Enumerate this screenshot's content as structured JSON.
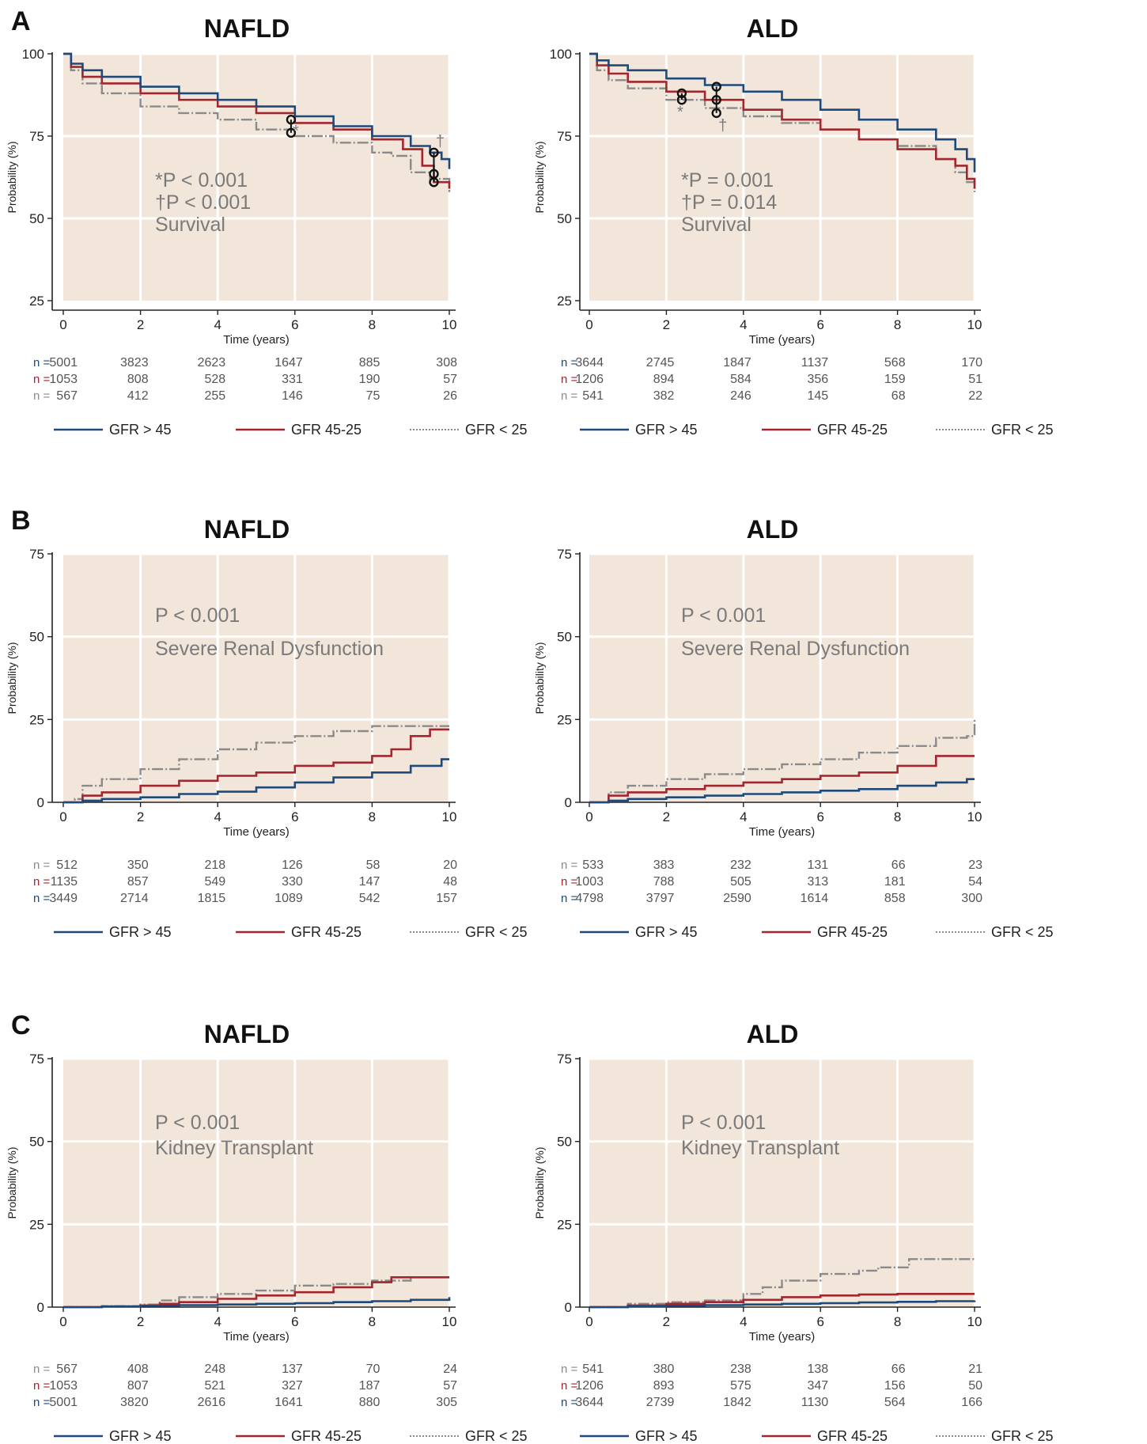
{
  "colors": {
    "background": "#ffffff",
    "plot_bg": "#f2e6da",
    "grid": "#ffffff",
    "axis": "#222222",
    "gfr_gt45": "#1d4a7a",
    "gfr_45_25": "#a3262e",
    "gfr_lt25": "#8a8a8a",
    "annotation": "#7a7a7a"
  },
  "common": {
    "ylabel": "Probability (%)",
    "xlabel": "Time (years)",
    "n_prefix": "n =",
    "legend": [
      {
        "key": "gfr_gt45",
        "label": "GFR > 45"
      },
      {
        "key": "gfr_45_25",
        "label": "GFR 45-25"
      },
      {
        "key": "gfr_lt25",
        "label": "GFR < 25"
      }
    ]
  },
  "chart_data": [
    {
      "panel": "A",
      "title": "NAFLD",
      "type": "line",
      "xlabel": "Time (years)",
      "ylabel": "Probability (%)",
      "xlim": [
        0,
        10
      ],
      "ylim": [
        25,
        100
      ],
      "x_ticks": [
        0,
        2,
        4,
        6,
        8,
        10
      ],
      "y_ticks": [
        25,
        50,
        75,
        100
      ],
      "annotation_lines": [
        "*P < 0.001",
        "†P < 0.001",
        "Survival"
      ],
      "series": [
        {
          "key": "gfr_gt45",
          "name": "GFR > 45",
          "x": [
            0,
            0.2,
            0.5,
            1,
            2,
            3,
            4,
            5,
            6,
            7,
            8,
            9,
            9.5,
            9.8,
            10
          ],
          "y": [
            100,
            97,
            95,
            93,
            90,
            88,
            86,
            84,
            81,
            78,
            75,
            72,
            70,
            68,
            65
          ]
        },
        {
          "key": "gfr_45_25",
          "name": "GFR 45-25",
          "x": [
            0,
            0.2,
            0.5,
            1,
            2,
            3,
            4,
            5,
            6,
            7,
            8,
            8.8,
            9.3,
            9.6,
            10
          ],
          "y": [
            100,
            96,
            93,
            91,
            88,
            86,
            84,
            82,
            79,
            77,
            74,
            71,
            66,
            61,
            59
          ]
        },
        {
          "key": "gfr_lt25",
          "name": "GFR < 25",
          "x": [
            0,
            0.2,
            0.5,
            1,
            2,
            3,
            4,
            5,
            6,
            7,
            8,
            8.5,
            9,
            9.5,
            10
          ],
          "y": [
            100,
            95,
            91,
            88,
            84,
            82,
            80,
            77,
            75,
            73,
            70,
            69,
            64,
            62,
            58
          ]
        }
      ],
      "markers": [
        {
          "x": 5.9,
          "y": [
            80,
            76
          ],
          "symbol": "*"
        },
        {
          "x": 9.6,
          "y": [
            70,
            63.5,
            61
          ],
          "symbol": "†"
        }
      ],
      "risk_table": [
        {
          "key": "gfr_gt45",
          "values": [
            "5001",
            "3823",
            "2623",
            "1647",
            "885",
            "308"
          ]
        },
        {
          "key": "gfr_45_25",
          "values": [
            "1053",
            "808",
            "528",
            "331",
            "190",
            "57"
          ]
        },
        {
          "key": "gfr_lt25",
          "values": [
            "567",
            "412",
            "255",
            "146",
            "75",
            "26"
          ]
        }
      ]
    },
    {
      "panel": "",
      "title": "ALD",
      "type": "line",
      "xlabel": "Time (years)",
      "ylabel": "Probability (%)",
      "xlim": [
        0,
        10
      ],
      "ylim": [
        25,
        100
      ],
      "x_ticks": [
        0,
        2,
        4,
        6,
        8,
        10
      ],
      "y_ticks": [
        25,
        50,
        75,
        100
      ],
      "annotation_lines": [
        "*P = 0.001",
        "†P = 0.014",
        "Survival"
      ],
      "series": [
        {
          "key": "gfr_gt45",
          "name": "GFR > 45",
          "x": [
            0,
            0.2,
            0.5,
            1,
            2,
            3,
            4,
            5,
            6,
            7,
            8,
            9,
            9.5,
            9.8,
            10
          ],
          "y": [
            100,
            98,
            96.5,
            95,
            92.5,
            90.5,
            88.5,
            86,
            83,
            80,
            77,
            74,
            71,
            68,
            64
          ]
        },
        {
          "key": "gfr_45_25",
          "name": "GFR 45-25",
          "x": [
            0,
            0.2,
            0.5,
            1,
            2,
            3,
            4,
            5,
            6,
            7,
            8,
            9,
            9.5,
            9.8,
            10
          ],
          "y": [
            100,
            96.5,
            94,
            91.5,
            88.5,
            86,
            83,
            80,
            77,
            74,
            71,
            68,
            66,
            62,
            59
          ]
        },
        {
          "key": "gfr_lt25",
          "name": "GFR < 25",
          "x": [
            0,
            0.2,
            0.5,
            1,
            2,
            3,
            4,
            5,
            6,
            7,
            8,
            9,
            9.5,
            9.8,
            10
          ],
          "y": [
            100,
            95,
            92,
            89.5,
            86,
            83.5,
            81,
            79,
            77,
            74,
            72,
            68,
            64,
            61,
            58
          ]
        }
      ],
      "markers": [
        {
          "x": 2.4,
          "y": [
            88,
            86
          ],
          "symbol": "*"
        },
        {
          "x": 3.3,
          "y": [
            90,
            86,
            82
          ],
          "symbol": "†"
        }
      ],
      "risk_table": [
        {
          "key": "gfr_gt45",
          "values": [
            "3644",
            "2745",
            "1847",
            "1137",
            "568",
            "170"
          ]
        },
        {
          "key": "gfr_45_25",
          "values": [
            "1206",
            "894",
            "584",
            "356",
            "159",
            "51"
          ]
        },
        {
          "key": "gfr_lt25",
          "values": [
            "541",
            "382",
            "246",
            "145",
            "68",
            "22"
          ]
        }
      ]
    },
    {
      "panel": "B",
      "title": "NAFLD",
      "type": "line",
      "xlabel": "Time (years)",
      "ylabel": "Probability (%)",
      "xlim": [
        0,
        10
      ],
      "ylim": [
        0,
        75
      ],
      "x_ticks": [
        0,
        2,
        4,
        6,
        8,
        10
      ],
      "y_ticks": [
        0,
        25,
        50,
        75
      ],
      "annotation_lines": [
        "P < 0.001",
        "Severe Renal Dysfunction"
      ],
      "series": [
        {
          "key": "gfr_gt45",
          "name": "GFR > 45",
          "x": [
            0,
            0.5,
            1,
            2,
            3,
            4,
            5,
            6,
            7,
            8,
            9,
            9.8,
            10
          ],
          "y": [
            0,
            0.5,
            1,
            1.5,
            2.5,
            3.2,
            4.5,
            6,
            7.5,
            9,
            11,
            13,
            13
          ]
        },
        {
          "key": "gfr_45_25",
          "name": "GFR 45-25",
          "x": [
            0,
            0.5,
            1,
            2,
            3,
            4,
            5,
            6,
            7,
            8,
            8.5,
            9,
            9.5,
            10
          ],
          "y": [
            0,
            2,
            3,
            5,
            6.5,
            8,
            9,
            11,
            12,
            14,
            16,
            20,
            22,
            22
          ]
        },
        {
          "key": "gfr_lt25",
          "name": "GFR < 25",
          "x": [
            0,
            0.3,
            0.5,
            1,
            2,
            3,
            4,
            5,
            6,
            7,
            8,
            9,
            10
          ],
          "y": [
            0,
            1,
            5,
            7,
            10,
            13,
            16,
            18,
            20,
            21.5,
            23,
            23,
            23
          ]
        }
      ],
      "markers": [],
      "risk_table": [
        {
          "key": "gfr_lt25",
          "values": [
            "512",
            "350",
            "218",
            "126",
            "58",
            "20"
          ]
        },
        {
          "key": "gfr_45_25",
          "values": [
            "1135",
            "857",
            "549",
            "330",
            "147",
            "48"
          ]
        },
        {
          "key": "gfr_gt45",
          "values": [
            "3449",
            "2714",
            "1815",
            "1089",
            "542",
            "157"
          ]
        }
      ]
    },
    {
      "panel": "",
      "title": "ALD",
      "type": "line",
      "xlabel": "Time (years)",
      "ylabel": "Probability (%)",
      "xlim": [
        0,
        10
      ],
      "ylim": [
        0,
        75
      ],
      "x_ticks": [
        0,
        2,
        4,
        6,
        8,
        10
      ],
      "y_ticks": [
        0,
        25,
        50,
        75
      ],
      "annotation_lines": [
        "P < 0.001",
        "Severe Renal Dysfunction"
      ],
      "series": [
        {
          "key": "gfr_gt45",
          "name": "GFR > 45",
          "x": [
            0,
            0.4,
            0.5,
            1,
            2,
            3,
            4,
            5,
            6,
            7,
            8,
            9,
            9.8,
            10
          ],
          "y": [
            0,
            0,
            0.5,
            1,
            1.5,
            2,
            2.5,
            3,
            3.5,
            4,
            5,
            6,
            7,
            7
          ]
        },
        {
          "key": "gfr_45_25",
          "name": "GFR 45-25",
          "x": [
            0,
            0.4,
            0.5,
            1,
            2,
            3,
            4,
            5,
            6,
            7,
            8,
            9,
            10
          ],
          "y": [
            0,
            0,
            2,
            3,
            4,
            5,
            6,
            7,
            8,
            9,
            11,
            14,
            14
          ]
        },
        {
          "key": "gfr_lt25",
          "name": "GFR < 25",
          "x": [
            0,
            0.4,
            0.5,
            1,
            2,
            3,
            4,
            5,
            6,
            7,
            8,
            9,
            9.8,
            10
          ],
          "y": [
            0,
            0,
            3,
            5,
            7,
            8.5,
            10,
            11.5,
            13,
            15,
            17,
            19.5,
            20,
            25
          ]
        }
      ],
      "markers": [],
      "risk_table": [
        {
          "key": "gfr_lt25",
          "values": [
            "533",
            "383",
            "232",
            "131",
            "66",
            "23"
          ]
        },
        {
          "key": "gfr_45_25",
          "values": [
            "1003",
            "788",
            "505",
            "313",
            "181",
            "54"
          ]
        },
        {
          "key": "gfr_gt45",
          "values": [
            "4798",
            "3797",
            "2590",
            "1614",
            "858",
            "300"
          ]
        }
      ]
    },
    {
      "panel": "C",
      "title": "NAFLD",
      "type": "line",
      "xlabel": "Time (years)",
      "ylabel": "Probability (%)",
      "xlim": [
        0,
        10
      ],
      "ylim": [
        0,
        75
      ],
      "x_ticks": [
        0,
        2,
        4,
        6,
        8,
        10
      ],
      "y_ticks": [
        0,
        25,
        50,
        75
      ],
      "annotation_lines": [
        "P < 0.001",
        "Kidney Transplant"
      ],
      "series": [
        {
          "key": "gfr_gt45",
          "name": "GFR > 45",
          "x": [
            0,
            1,
            2,
            3,
            4,
            5,
            6,
            7,
            8,
            9,
            10
          ],
          "y": [
            0,
            0.2,
            0.4,
            0.6,
            0.8,
            1,
            1.2,
            1.5,
            1.8,
            2.2,
            3
          ]
        },
        {
          "key": "gfr_45_25",
          "name": "GFR 45-25",
          "x": [
            0,
            1,
            2,
            2.5,
            3,
            4,
            5,
            6,
            7,
            8,
            8.5,
            9,
            10
          ],
          "y": [
            0,
            0.2,
            0.5,
            1,
            1.5,
            2.5,
            3.5,
            4.5,
            6,
            7.5,
            9,
            9,
            9
          ]
        },
        {
          "key": "gfr_lt25",
          "name": "GFR < 25",
          "x": [
            0,
            1,
            2,
            2.5,
            3,
            4,
            5,
            6,
            7,
            8,
            9,
            10
          ],
          "y": [
            0,
            0.3,
            0.8,
            2,
            3,
            4,
            5,
            6.5,
            7,
            8,
            9,
            9
          ]
        }
      ],
      "markers": [],
      "risk_table": [
        {
          "key": "gfr_lt25",
          "values": [
            "567",
            "408",
            "248",
            "137",
            "70",
            "24"
          ]
        },
        {
          "key": "gfr_45_25",
          "values": [
            "1053",
            "807",
            "521",
            "327",
            "187",
            "57"
          ]
        },
        {
          "key": "gfr_gt45",
          "values": [
            "5001",
            "3820",
            "2616",
            "1641",
            "880",
            "305"
          ]
        }
      ]
    },
    {
      "panel": "",
      "title": "ALD",
      "type": "line",
      "xlabel": "Time (years)",
      "ylabel": "Probability (%)",
      "xlim": [
        0,
        10
      ],
      "ylim": [
        0,
        75
      ],
      "x_ticks": [
        0,
        2,
        4,
        6,
        8,
        10
      ],
      "y_ticks": [
        0,
        25,
        50,
        75
      ],
      "annotation_lines": [
        "P < 0.001",
        "Kidney Transplant"
      ],
      "series": [
        {
          "key": "gfr_gt45",
          "name": "GFR > 45",
          "x": [
            0,
            1,
            2,
            3,
            4,
            5,
            6,
            7,
            8,
            9,
            10
          ],
          "y": [
            0,
            0.2,
            0.4,
            0.6,
            0.8,
            1,
            1.2,
            1.4,
            1.6,
            1.8,
            2
          ]
        },
        {
          "key": "gfr_45_25",
          "name": "GFR 45-25",
          "x": [
            0,
            1,
            2,
            3,
            4,
            5,
            6,
            7,
            8,
            9,
            10
          ],
          "y": [
            0,
            0.5,
            1,
            1.5,
            2.2,
            3,
            3.5,
            3.8,
            4,
            4,
            4
          ]
        },
        {
          "key": "gfr_lt25",
          "name": "GFR < 25",
          "x": [
            0,
            1,
            2,
            3,
            4,
            4.5,
            5,
            6,
            7,
            7.5,
            8,
            8.3,
            9,
            10
          ],
          "y": [
            0,
            1,
            1.5,
            2,
            4,
            6,
            8,
            10,
            11,
            12,
            12,
            14.5,
            14.5,
            14.5
          ]
        }
      ],
      "markers": [],
      "risk_table": [
        {
          "key": "gfr_lt25",
          "values": [
            "541",
            "380",
            "238",
            "138",
            "66",
            "21"
          ]
        },
        {
          "key": "gfr_45_25",
          "values": [
            "1206",
            "893",
            "575",
            "347",
            "156",
            "50"
          ]
        },
        {
          "key": "gfr_gt45",
          "values": [
            "3644",
            "2739",
            "1842",
            "1130",
            "564",
            "166"
          ]
        }
      ]
    }
  ]
}
